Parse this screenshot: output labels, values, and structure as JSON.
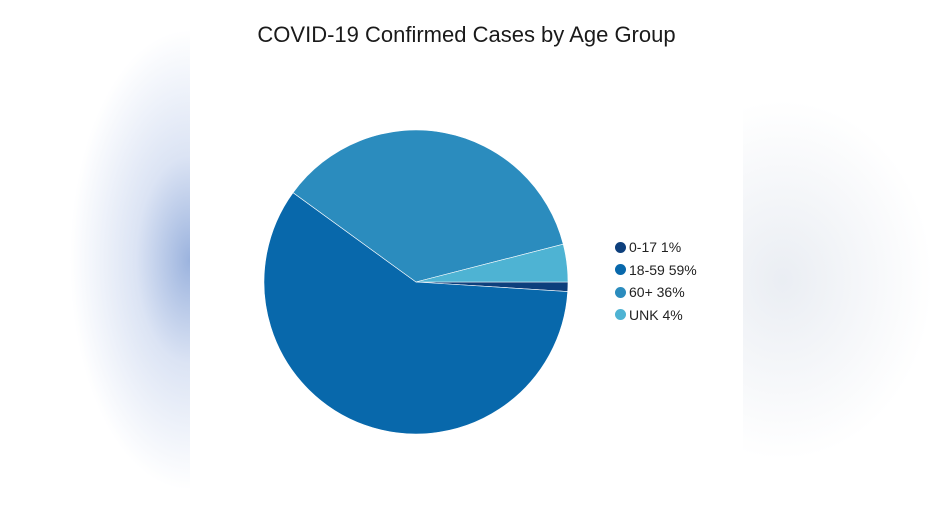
{
  "chart_data": {
    "type": "pie",
    "title": "COVID-19 Confirmed Cases by Age Group",
    "categories": [
      "0-17",
      "18-59",
      "60+",
      "UNK"
    ],
    "values": [
      1,
      59,
      36,
      4
    ],
    "unit": "%",
    "legend_labels": [
      "0-17 1%",
      "18-59 59%",
      "60+ 36%",
      "UNK 4%"
    ],
    "colors": [
      "#0d3f7c",
      "#0868ab",
      "#2b8cbe",
      "#4eb3d3"
    ],
    "legend_position": "right"
  }
}
